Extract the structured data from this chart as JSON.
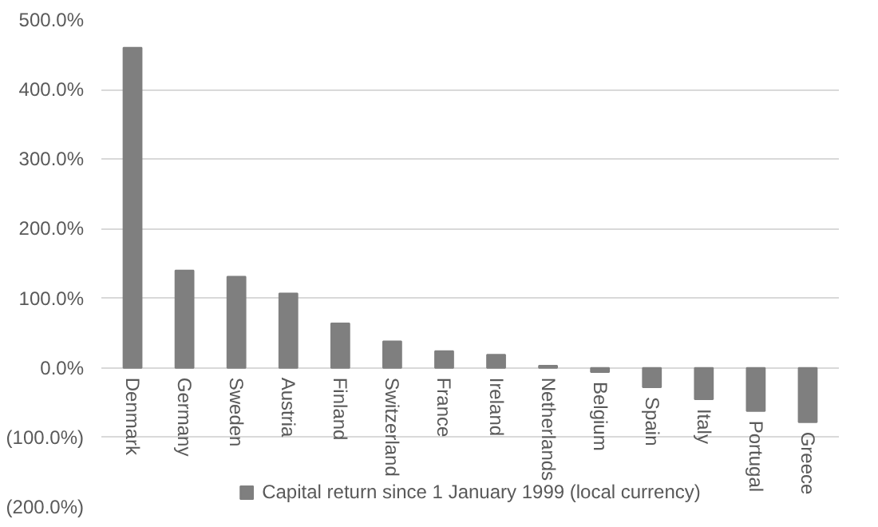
{
  "chart_data": {
    "type": "bar",
    "categories": [
      "Denmark",
      "Germany",
      "Sweden",
      "Austria",
      "Finland",
      "Switzerland",
      "France",
      "Ireland",
      "Netherlands",
      "Belgium",
      "Spain",
      "Italy",
      "Portugal",
      "Greece"
    ],
    "series": [
      {
        "name": "Capital return since 1 January 1999 (local currency)",
        "color": "#7f7f7f",
        "values": [
          460,
          140,
          131,
          107,
          64,
          38,
          24,
          19,
          3,
          -6,
          -28,
          -45,
          -62,
          -78
        ]
      }
    ],
    "ylim": [
      -200,
      500
    ],
    "yticks": [
      {
        "value": -200,
        "label": "(200.0%)"
      },
      {
        "value": -100,
        "label": "(100.0%)"
      },
      {
        "value": 0,
        "label": "0.0%"
      },
      {
        "value": 100,
        "label": "100.0%"
      },
      {
        "value": 200,
        "label": "200.0%"
      },
      {
        "value": 300,
        "label": "300.0%"
      },
      {
        "value": 400,
        "label": "400.0%"
      },
      {
        "value": 500,
        "label": "500.0%"
      }
    ],
    "grid": "y",
    "legend": "bottom"
  }
}
